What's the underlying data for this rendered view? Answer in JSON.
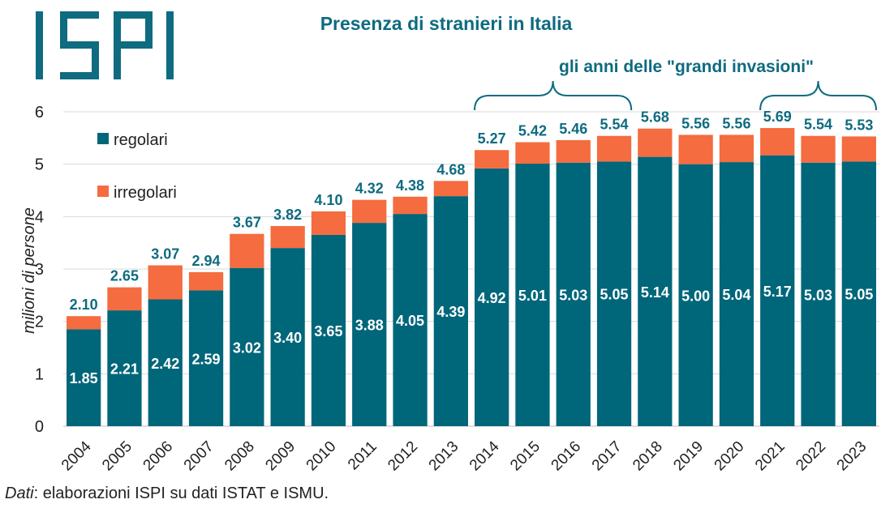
{
  "logo_text": "ISPI",
  "title": "Presenza di stranieri in Italia",
  "annotation": "gli anni delle \"grandi invasioni\"",
  "source": {
    "label": "Dati",
    "text": ": elaborazioni ISPI su dati ISTAT e ISMU."
  },
  "colors": {
    "regolari": "#00667a",
    "irregolari": "#f46c3f",
    "labels": "#0e6b80",
    "grid": "#d9d9d9"
  },
  "chart_data": {
    "type": "bar",
    "stacked": true,
    "title": "Presenza di stranieri in Italia",
    "ylabel": "milioni di persone",
    "xlabel": "",
    "ylim": [
      0,
      6
    ],
    "yticks": [
      0,
      1,
      2,
      3,
      4,
      5,
      6
    ],
    "grid": true,
    "legend_position": "top-left, inside",
    "categories": [
      "2004",
      "2005",
      "2006",
      "2007",
      "2008",
      "2009",
      "2010",
      "2011",
      "2012",
      "2013",
      "2014",
      "2015",
      "2016",
      "2017",
      "2018",
      "2019",
      "2020",
      "2021",
      "2022",
      "2023"
    ],
    "series": [
      {
        "name": "regolari",
        "values": [
          1.85,
          2.21,
          2.42,
          2.59,
          3.02,
          3.4,
          3.65,
          3.88,
          4.05,
          4.39,
          4.92,
          5.01,
          5.03,
          5.05,
          5.14,
          5.0,
          5.04,
          5.17,
          5.03,
          5.05
        ]
      },
      {
        "name": "irregolari",
        "values": [
          0.25,
          0.44,
          0.65,
          0.35,
          0.65,
          0.42,
          0.45,
          0.44,
          0.33,
          0.29,
          0.35,
          0.41,
          0.43,
          0.49,
          0.54,
          0.56,
          0.52,
          0.52,
          0.51,
          0.48
        ]
      }
    ],
    "regolari_labels": [
      "1.85",
      "2.21",
      "2.42",
      "2.59",
      "3.02",
      "3.40",
      "3.65",
      "3.88",
      "4.05",
      "4.39",
      "4.92",
      "5.01",
      "5.03",
      "5.05",
      "5.14",
      "5.00",
      "5.04",
      "5.17",
      "5.03",
      "5.05"
    ],
    "total_labels": [
      "2.10",
      "2.65",
      "3.07",
      "2.94",
      "3.67",
      "3.82",
      "4.10",
      "4.32",
      "4.38",
      "4.68",
      "5.27",
      "5.42",
      "5.46",
      "5.54",
      "5.68",
      "5.56",
      "5.56",
      "5.69",
      "5.54",
      "5.53"
    ],
    "totals": [
      2.1,
      2.65,
      3.07,
      2.94,
      3.67,
      3.82,
      4.1,
      4.32,
      4.38,
      4.68,
      5.27,
      5.42,
      5.46,
      5.54,
      5.68,
      5.56,
      5.56,
      5.69,
      5.54,
      5.53
    ],
    "annotations": [
      {
        "text": "gli anni delle \"grandi invasioni\"",
        "spans": [
          [
            "2014",
            "2017"
          ],
          [
            "2021",
            "2023"
          ]
        ]
      }
    ]
  }
}
